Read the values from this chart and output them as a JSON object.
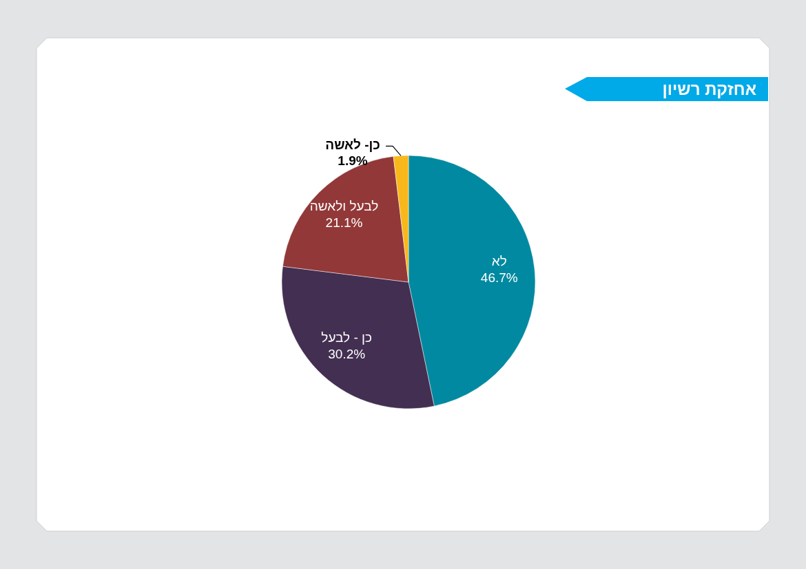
{
  "chart_data": {
    "type": "pie",
    "title": "אחזקת רשיון",
    "categories": [
      "לא",
      "כן - לבעל",
      "לבעל ולאשה",
      "כן- לאשה"
    ],
    "values": [
      46.7,
      30.2,
      21.1,
      1.9
    ],
    "value_labels": [
      "46.7%",
      "30.2%",
      "21.1%",
      "1.9%"
    ],
    "colors": [
      "#0089a0",
      "#432f52",
      "#923838",
      "#f8b81c"
    ]
  }
}
